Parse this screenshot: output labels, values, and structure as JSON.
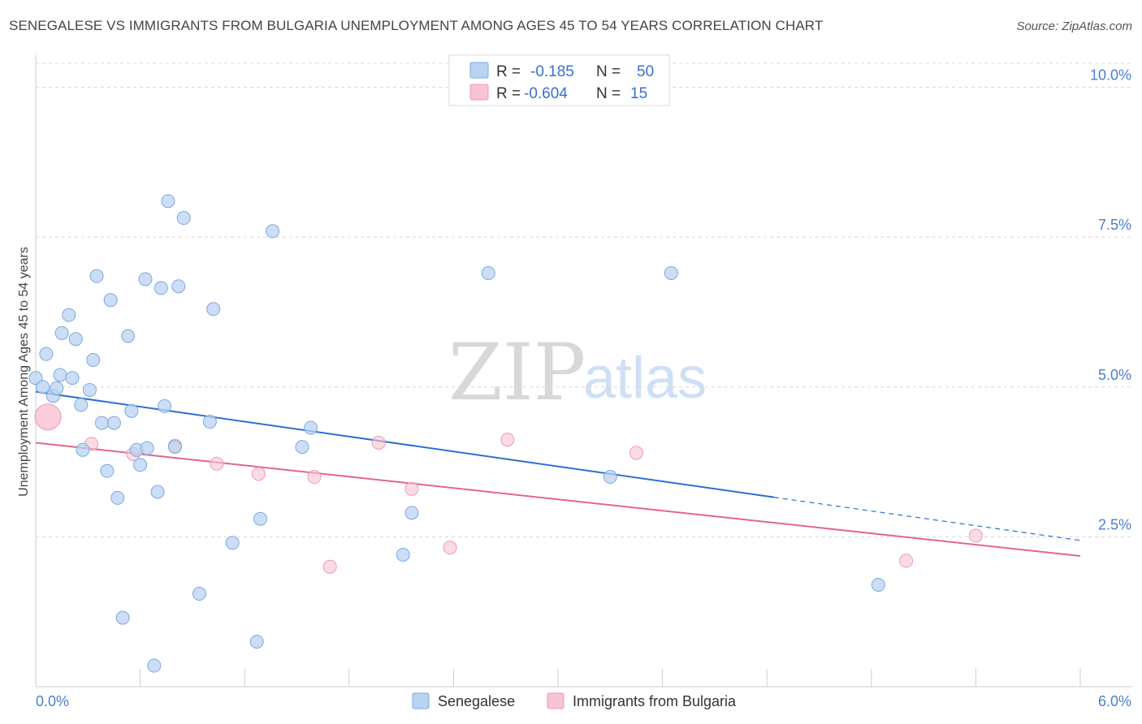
{
  "title": "SENEGALESE VS IMMIGRANTS FROM BULGARIA UNEMPLOYMENT AMONG AGES 45 TO 54 YEARS CORRELATION CHART",
  "source": "Source: ZipAtlas.com",
  "watermark": {
    "zip": "ZIP",
    "atlas": "atlas"
  },
  "legend": {
    "row1": {
      "r_label": "R =",
      "r_value": "-0.185",
      "n_label": "N =",
      "n_value": "50"
    },
    "row2": {
      "r_label": "R =",
      "r_value": "-0.604",
      "n_label": "N =",
      "n_value": "15"
    }
  },
  "bottom_legend": {
    "s1": "Senegalese",
    "s2": "Immigrants from Bulgaria"
  },
  "chart_data": {
    "type": "scatter",
    "title": "SENEGALESE VS IMMIGRANTS FROM BULGARIA UNEMPLOYMENT AMONG AGES 45 TO 54 YEARS CORRELATION CHART",
    "xlabel": "",
    "ylabel": "Unemployment Among Ages 45 to 54 years",
    "xlim": [
      0,
      6
    ],
    "ylim": [
      0,
      10.4
    ],
    "x_tick_labels": [
      {
        "value": 0,
        "label": "0.0%"
      },
      {
        "value": 6,
        "label": "6.0%"
      }
    ],
    "y_tick_labels": [
      {
        "value": 2.5,
        "label": "2.5%"
      },
      {
        "value": 5.0,
        "label": "5.0%"
      },
      {
        "value": 7.5,
        "label": "7.5%"
      },
      {
        "value": 10.0,
        "label": "10.0%"
      }
    ],
    "colors": {
      "s1_fill": "#b9d3f3",
      "s1_stroke": "#7ea8df",
      "s1_line": "#2c6fd1",
      "s2_fill": "#f8c4d3",
      "s2_stroke": "#ec9ab3",
      "s2_line": "#e3668f",
      "grid": "#d8d8d8"
    },
    "series": [
      {
        "name": "Senegalese",
        "R": -0.185,
        "N": 50,
        "trend": {
          "x1": 0.0,
          "y1": 4.92,
          "x2": 4.24,
          "y2": 3.16,
          "dash_to_x": 6.0,
          "dash_to_y": 2.44
        },
        "points": [
          [
            0.0,
            5.15
          ],
          [
            0.04,
            5.0
          ],
          [
            0.06,
            5.55
          ],
          [
            0.1,
            4.85
          ],
          [
            0.12,
            4.98
          ],
          [
            0.14,
            5.2
          ],
          [
            0.15,
            5.9
          ],
          [
            0.19,
            6.2
          ],
          [
            0.21,
            5.15
          ],
          [
            0.23,
            5.8
          ],
          [
            0.26,
            4.7
          ],
          [
            0.27,
            3.95
          ],
          [
            0.31,
            4.95
          ],
          [
            0.33,
            5.45
          ],
          [
            0.35,
            6.85
          ],
          [
            0.38,
            4.4
          ],
          [
            0.41,
            3.6
          ],
          [
            0.43,
            6.45
          ],
          [
            0.45,
            4.4
          ],
          [
            0.47,
            3.15
          ],
          [
            0.5,
            1.15
          ],
          [
            0.53,
            5.85
          ],
          [
            0.55,
            4.6
          ],
          [
            0.58,
            3.95
          ],
          [
            0.6,
            3.7
          ],
          [
            0.63,
            6.8
          ],
          [
            0.64,
            3.98
          ],
          [
            0.68,
            0.35
          ],
          [
            0.7,
            3.25
          ],
          [
            0.72,
            6.65
          ],
          [
            0.74,
            4.68
          ],
          [
            0.76,
            8.1
          ],
          [
            0.8,
            4.0
          ],
          [
            0.82,
            6.68
          ],
          [
            0.85,
            7.82
          ],
          [
            0.94,
            1.55
          ],
          [
            1.0,
            4.42
          ],
          [
            1.02,
            6.3
          ],
          [
            1.13,
            2.4
          ],
          [
            1.27,
            0.75
          ],
          [
            1.29,
            2.8
          ],
          [
            1.36,
            7.6
          ],
          [
            1.53,
            4.0
          ],
          [
            1.58,
            4.32
          ],
          [
            2.11,
            2.2
          ],
          [
            2.16,
            2.9
          ],
          [
            2.6,
            6.9
          ],
          [
            3.3,
            3.5
          ],
          [
            3.65,
            6.9
          ],
          [
            4.84,
            1.7
          ]
        ]
      },
      {
        "name": "Immigrants from Bulgaria",
        "R": -0.604,
        "N": 15,
        "trend": {
          "x1": 0.0,
          "y1": 4.07,
          "x2": 6.0,
          "y2": 2.18
        },
        "points": [
          [
            0.07,
            4.5
          ],
          [
            0.32,
            4.05
          ],
          [
            0.56,
            3.88
          ],
          [
            0.8,
            4.02
          ],
          [
            1.04,
            3.72
          ],
          [
            1.28,
            3.55
          ],
          [
            1.6,
            3.5
          ],
          [
            1.69,
            2.0
          ],
          [
            1.97,
            4.07
          ],
          [
            2.16,
            3.3
          ],
          [
            2.38,
            2.32
          ],
          [
            2.71,
            4.12
          ],
          [
            3.45,
            3.9
          ],
          [
            5.0,
            2.1
          ],
          [
            5.4,
            2.52
          ]
        ]
      }
    ]
  }
}
